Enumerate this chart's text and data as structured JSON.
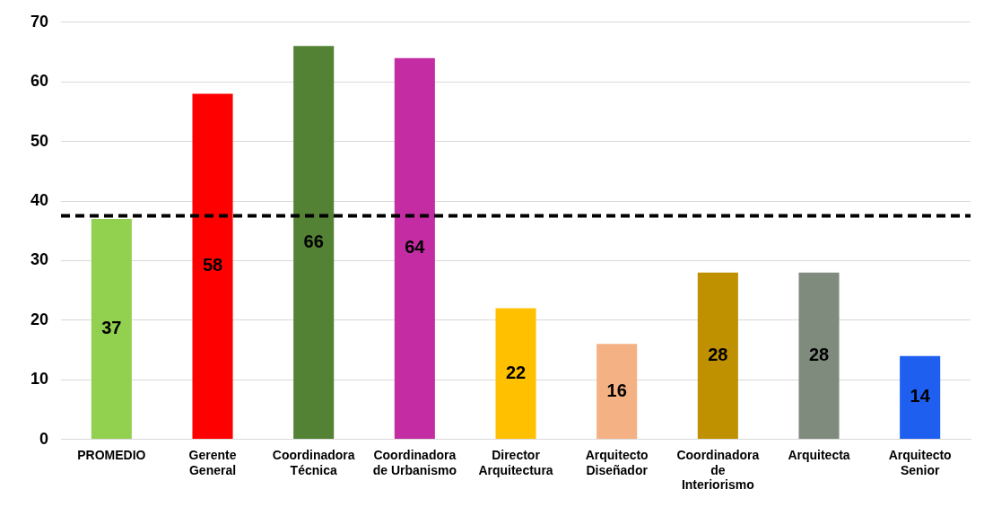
{
  "chart_data": {
    "type": "bar",
    "categories": [
      "PROMEDIO",
      "Gerente General",
      "Coordinadora Técnica",
      "Coordinadora de Urbanismo",
      "Director Arquitectura",
      "Arquitecto Diseñador",
      "Coordinadora de Interiorismo",
      "Arquitecta",
      "Arquitecto Senior"
    ],
    "values": [
      37,
      58,
      66,
      64,
      22,
      16,
      28,
      28,
      14
    ],
    "colors": [
      "#92d050",
      "#ff0000",
      "#548235",
      "#c32ca3",
      "#ffc000",
      "#f4b183",
      "#bf9000",
      "#7f8b7d",
      "#1f5ff0"
    ],
    "ylim": [
      0,
      70
    ],
    "yticks": [
      0,
      10,
      20,
      30,
      40,
      50,
      60,
      70
    ],
    "grid": "y",
    "legend": false,
    "data_labels": true,
    "ref_lines": [
      {
        "axis": "y",
        "value": 37.5,
        "color": "#000000",
        "line_style": "dashed"
      }
    ]
  }
}
